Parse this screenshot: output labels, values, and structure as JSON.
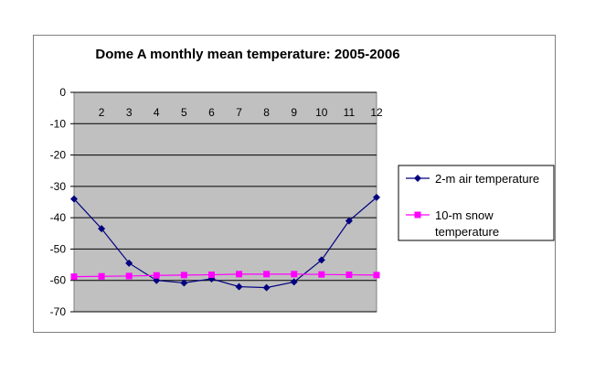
{
  "chart_data": {
    "type": "line",
    "title": "Dome A monthly mean temperature: 2005-2006",
    "xlabel": "",
    "ylabel": "",
    "x": [
      1,
      2,
      3,
      4,
      5,
      6,
      7,
      8,
      9,
      10,
      11,
      12
    ],
    "x_tick_labels": [
      "",
      "2",
      "3",
      "4",
      "5",
      "6",
      "7",
      "8",
      "9",
      "10",
      "11",
      "12"
    ],
    "ylim": [
      -70,
      0
    ],
    "y_ticks": [
      0,
      -10,
      -20,
      -30,
      -40,
      -50,
      -60,
      -70
    ],
    "y_tick_labels": [
      "0",
      "-10",
      "-20",
      "-30",
      "-40",
      "-50",
      "-60",
      "-70"
    ],
    "grid": "horizontal",
    "plot_background": "#c0c0c0",
    "legend_position": "right",
    "series": [
      {
        "name": "2-m  air temperature",
        "legend_lines": [
          "2-m  air temperature"
        ],
        "marker": "diamond",
        "color": "#000080",
        "values": [
          -34.0,
          -43.5,
          -54.5,
          -60.0,
          -60.8,
          -59.5,
          -62.0,
          -62.3,
          -60.5,
          -53.5,
          -41.0,
          -33.5
        ]
      },
      {
        "name": "10-m  snow temperature",
        "legend_lines": [
          "10-m  snow",
          "temperature"
        ],
        "marker": "square",
        "color": "#ff00ff",
        "values": [
          -58.8,
          -58.7,
          -58.6,
          -58.4,
          -58.3,
          -58.2,
          -58.0,
          -58.0,
          -58.0,
          -58.1,
          -58.2,
          -58.3
        ]
      }
    ]
  }
}
